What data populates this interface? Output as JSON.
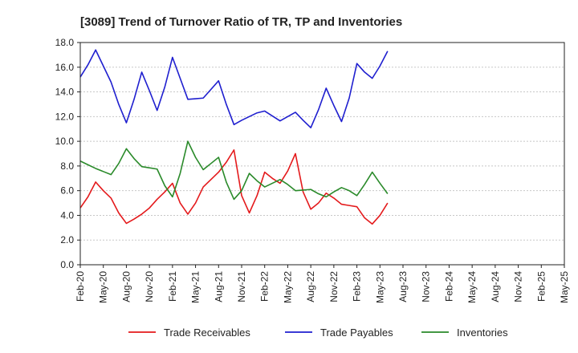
{
  "chart_data": {
    "type": "line",
    "title": "[3089]  Trend of Turnover Ratio of TR, TP and Inventories",
    "xlabel": "",
    "ylabel": "",
    "ylim": [
      0,
      18
    ],
    "yticks": [
      "0.0",
      "2.0",
      "4.0",
      "6.0",
      "8.0",
      "10.0",
      "12.0",
      "14.0",
      "16.0",
      "18.0"
    ],
    "x_tick_labels": [
      "Feb-20",
      "May-20",
      "Aug-20",
      "Nov-20",
      "Feb-21",
      "May-21",
      "Aug-21",
      "Nov-21",
      "Feb-22",
      "May-22",
      "Aug-22",
      "Nov-22",
      "Feb-23",
      "May-23",
      "Aug-23",
      "Nov-23",
      "Feb-24",
      "May-24",
      "Aug-24",
      "Nov-24",
      "Feb-25",
      "May-25"
    ],
    "grid": true,
    "legend_position": "bottom",
    "series": [
      {
        "name": "Trade Receivables",
        "color": "#e41a1c",
        "values": [
          4.6,
          5.5,
          6.7,
          6.0,
          5.4,
          4.2,
          3.35,
          3.7,
          4.1,
          4.6,
          5.3,
          5.9,
          6.6,
          5.0,
          4.1,
          5.0,
          6.3,
          6.9,
          7.5,
          8.3,
          9.3,
          5.6,
          4.2,
          5.6,
          7.5,
          7.0,
          6.6,
          7.6,
          9.0,
          5.9,
          4.5,
          5.0,
          5.8,
          5.4,
          4.9,
          4.8,
          4.7,
          3.8,
          3.3,
          4.0,
          5.0
        ]
      },
      {
        "name": "Trade Payables",
        "color": "#1f1fcf",
        "values": [
          15.2,
          16.2,
          17.4,
          16.1,
          14.8,
          13.0,
          11.5,
          13.4,
          15.6,
          14.1,
          12.5,
          14.4,
          16.8,
          15.1,
          13.4,
          13.45,
          13.5,
          14.2,
          14.9,
          13.0,
          11.35,
          11.7,
          12.0,
          12.3,
          12.45,
          12.05,
          11.65,
          12.0,
          12.35,
          11.7,
          11.1,
          12.55,
          14.3,
          12.9,
          11.6,
          13.5,
          16.3,
          15.6,
          15.1,
          16.1,
          17.3
        ]
      },
      {
        "name": "Inventories",
        "color": "#2a8a2a",
        "values": [
          8.4,
          8.1,
          7.8,
          7.55,
          7.3,
          8.2,
          9.4,
          8.6,
          7.95,
          7.85,
          7.75,
          6.4,
          5.5,
          7.4,
          10.0,
          8.7,
          7.7,
          8.2,
          8.7,
          6.7,
          5.3,
          6.0,
          7.4,
          6.8,
          6.3,
          6.6,
          6.9,
          6.5,
          6.0,
          6.05,
          6.1,
          5.75,
          5.5,
          5.9,
          6.25,
          6.0,
          5.6,
          6.5,
          7.5,
          6.6,
          5.75
        ]
      }
    ]
  }
}
